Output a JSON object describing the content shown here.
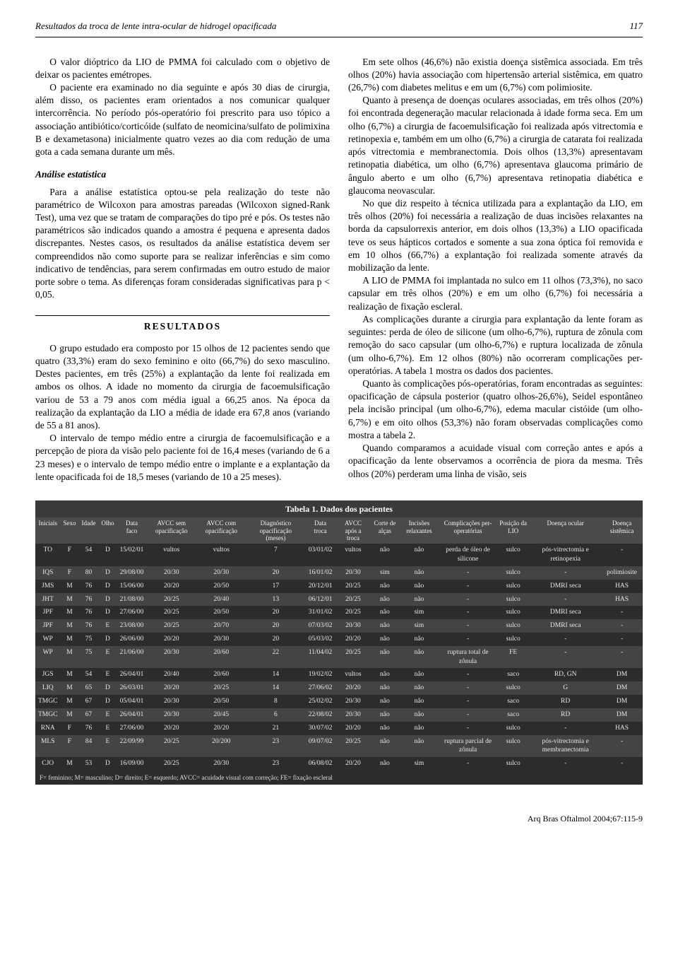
{
  "header": {
    "running_title": "Resultados da troca de lente intra-ocular de hidrogel opacificada",
    "page_number": "117"
  },
  "left": {
    "p1": "O valor dióptrico da LIO de PMMA foi calculado com o objetivo de deixar os pacientes emétropes.",
    "p2": "O paciente era examinado no dia seguinte e após 30 dias de cirurgia, além disso, os pacientes eram orientados a nos comunicar qualquer intercorrência. No período pós-operatório foi prescrito para uso tópico a associação antibiótico/corticóide (sulfato de neomicina/sulfato de polimixina B e dexametasona) inicialmente quatro vezes ao dia com redução de uma gota a cada semana durante um mês.",
    "stat_head": "Análise estatística",
    "p3": "Para a análise estatística optou-se pela realização do teste não paramétrico de Wilcoxon para amostras pareadas (Wilcoxon signed-Rank Test), uma vez que se tratam de comparações do tipo pré e pós. Os testes não paramétricos são indicados quando a amostra é pequena e apresenta dados discrepantes. Nestes casos, os resultados da análise estatística devem ser compreendidos não como suporte para se realizar inferências e sim como indicativo de tendências, para serem confirmadas em outro estudo de maior porte sobre o tema. As diferenças foram consideradas significativas para p < 0,05.",
    "results_head": "RESULTADOS",
    "p4": "O grupo estudado era composto por 15 olhos de 12 pacientes sendo que quatro (33,3%) eram do sexo feminino e oito (66,7%) do sexo masculino. Destes pacientes, em três (25%) a explantação da lente foi realizada em ambos os olhos. A idade no momento da cirurgia de facoemulsificação variou de 53 a 79 anos com média igual a 66,25 anos. Na época da realização da explantação da LIO a média de idade era 67,8 anos (variando de 55 a 81 anos).",
    "p5": "O intervalo de tempo médio entre a cirurgia de facoemulsificação e a percepção de piora da visão pelo paciente foi de 16,4 meses (variando de 6 a 23 meses) e o intervalo de tempo médio entre o implante e a explantação da lente opacificada foi de 18,5 meses (variando de 10 a 25 meses)."
  },
  "right": {
    "p1": "Em sete olhos (46,6%) não existia doença sistêmica associada. Em três olhos (20%) havia associação com hipertensão arterial sistêmica, em quatro (26,7%) com diabetes melitus e em um (6,7%) com polimiosite.",
    "p2": "Quanto à presença de doenças oculares associadas, em três olhos (20%) foi encontrada degeneração macular relacionada à idade forma seca. Em um olho (6,7%) a cirurgia de facoemulsificação foi realizada após vitrectomia e retinopexia e, também em um olho (6,7%) a cirurgia de catarata foi realizada após vitrectomia e membranectomia. Dois olhos (13,3%) apresentavam retinopatia diabética, um olho (6,7%) apresentava glaucoma primário de ângulo aberto e um olho (6,7%) apresentava retinopatia diabética e glaucoma neovascular.",
    "p3": "No que diz respeito à técnica utilizada para a explantação da LIO, em três olhos (20%) foi necessária a realização de duas incisões relaxantes na borda da capsulorrexis anterior, em dois olhos (13,3%) a LIO opacificada teve os seus hápticos cortados e somente a sua zona óptica foi removida e em 10 olhos (66,7%) a explantação foi realizada somente através da mobilização da lente.",
    "p4": "A LIO de PMMA foi implantada no sulco em 11 olhos (73,3%), no saco capsular em três olhos (20%) e em um olho (6,7%) foi necessária a realização de fixação escleral.",
    "p5": "As complicações durante a cirurgia para explantação da lente foram as seguintes: perda de óleo de silicone (um olho-6,7%), ruptura de zônula com remoção do saco capsular (um olho-6,7%) e ruptura localizada de zônula (um olho-6,7%). Em 12 olhos (80%) não ocorreram complicações per-operatórias. A tabela 1 mostra os dados dos pacientes.",
    "p6": "Quanto às complicações pós-operatórias, foram encontradas as seguintes: opacificação de cápsula posterior (quatro olhos-26,6%), Seidel espontâneo pela incisão principal (um olho-6,7%), edema macular cistóide (um olho-6,7%) e em oito olhos (53,3%) não foram observadas complicações como mostra a tabela 2.",
    "p7": "Quando comparamos a acuidade visual com correção antes e após a opacificação da lente observamos a ocorrência de piora da mesma. Três olhos (20%) perderam uma linha de visão, seis"
  },
  "table": {
    "caption": "Tabela 1. Dados dos pacientes",
    "columns": [
      "Iniciais",
      "Sexo",
      "Idade",
      "Olho",
      "Data faco",
      "AVCC sem opacificação",
      "AVCC com opacificação",
      "Diagnóstico opacificação (meses)",
      "Data troca",
      "AVCC após a troca",
      "Corte de alças",
      "Incisões relaxantes",
      "Complicações per-operatórias",
      "Posição da LIO",
      "Doença ocular",
      "Doença sistêmica"
    ],
    "rows": [
      [
        "TO",
        "F",
        "54",
        "D",
        "15/02/01",
        "vultos",
        "vultos",
        "7",
        "03/01/02",
        "vultos",
        "não",
        "não",
        "perda de óleo de silicone",
        "sulco",
        "pós-vitrectomia e retinopexia",
        "-"
      ],
      [
        "IQS",
        "F",
        "80",
        "D",
        "29/08/00",
        "20/30",
        "20/30",
        "20",
        "16/01/02",
        "20/30",
        "sim",
        "não",
        "-",
        "sulco",
        "-",
        "polimiosite"
      ],
      [
        "JMS",
        "M",
        "76",
        "D",
        "15/06/00",
        "20/20",
        "20/50",
        "17",
        "20/12/01",
        "20/25",
        "não",
        "não",
        "-",
        "sulco",
        "DMRI seca",
        "HAS"
      ],
      [
        "JHT",
        "M",
        "76",
        "D",
        "21/08/00",
        "20/25",
        "20/40",
        "13",
        "06/12/01",
        "20/25",
        "não",
        "não",
        "-",
        "sulco",
        "-",
        "HAS"
      ],
      [
        "JPF",
        "M",
        "76",
        "D",
        "27/06/00",
        "20/25",
        "20/50",
        "20",
        "31/01/02",
        "20/25",
        "não",
        "sim",
        "-",
        "sulco",
        "DMRI seca",
        "-"
      ],
      [
        "JPF",
        "M",
        "76",
        "E",
        "23/08/00",
        "20/25",
        "20/70",
        "20",
        "07/03/02",
        "20/30",
        "não",
        "sim",
        "-",
        "sulco",
        "DMRI seca",
        "-"
      ],
      [
        "WP",
        "M",
        "75",
        "D",
        "26/06/00",
        "20/20",
        "20/30",
        "20",
        "05/03/02",
        "20/20",
        "não",
        "não",
        "-",
        "sulco",
        "-",
        "-"
      ],
      [
        "WP",
        "M",
        "75",
        "E",
        "21/06/00",
        "20/30",
        "20/60",
        "22",
        "11/04/02",
        "20/25",
        "não",
        "não",
        "ruptura total de zônula",
        "FE",
        "-",
        "-"
      ],
      [
        "JGS",
        "M",
        "54",
        "E",
        "26/04/01",
        "20/40",
        "20/60",
        "14",
        "19/02/02",
        "vultos",
        "não",
        "não",
        "-",
        "saco",
        "RD, GN",
        "DM"
      ],
      [
        "LIQ",
        "M",
        "65",
        "D",
        "26/03/01",
        "20/20",
        "20/25",
        "14",
        "27/06/02",
        "20/20",
        "não",
        "não",
        "-",
        "sulco",
        "G",
        "DM"
      ],
      [
        "TMGC",
        "M",
        "67",
        "D",
        "05/04/01",
        "20/30",
        "20/50",
        "8",
        "25/02/02",
        "20/30",
        "não",
        "não",
        "-",
        "saco",
        "RD",
        "DM"
      ],
      [
        "TMGC",
        "M",
        "67",
        "E",
        "26/04/01",
        "20/30",
        "20/45",
        "6",
        "22/08/02",
        "20/30",
        "não",
        "não",
        "-",
        "saco",
        "RD",
        "DM"
      ],
      [
        "RNA",
        "F",
        "76",
        "E",
        "27/06/00",
        "20/20",
        "20/20",
        "21",
        "30/07/02",
        "20/20",
        "não",
        "não",
        "-",
        "sulco",
        "-",
        "HAS"
      ],
      [
        "MLS",
        "F",
        "84",
        "E",
        "22/09/99",
        "20/25",
        "20/200",
        "23",
        "09/07/02",
        "20/25",
        "não",
        "não",
        "ruptura parcial de zônula",
        "sulco",
        "pós-vitrectomia e membranectomia",
        "-"
      ],
      [
        "CJO",
        "M",
        "53",
        "D",
        "16/09/00",
        "20/25",
        "20/30",
        "23",
        "06/08/02",
        "20/20",
        "não",
        "sim",
        "-",
        "sulco",
        "-",
        "-"
      ]
    ],
    "footnote": "F= feminino; M= masculino; D= direito; E= esquerdo; AVCC= acuidade visual com correção; FE= fixação escleral"
  },
  "footer": {
    "citation": "Arq Bras Oftalmol 2004;67:115-9"
  },
  "style": {
    "body_font_pt": 13.5,
    "table_font_pt": 9.5,
    "table_bg": "#2c2c2c",
    "table_header_bg": "#4a4a4a",
    "table_alt_row_bg": "#444444",
    "table_text_color": "#e6e6e6"
  }
}
